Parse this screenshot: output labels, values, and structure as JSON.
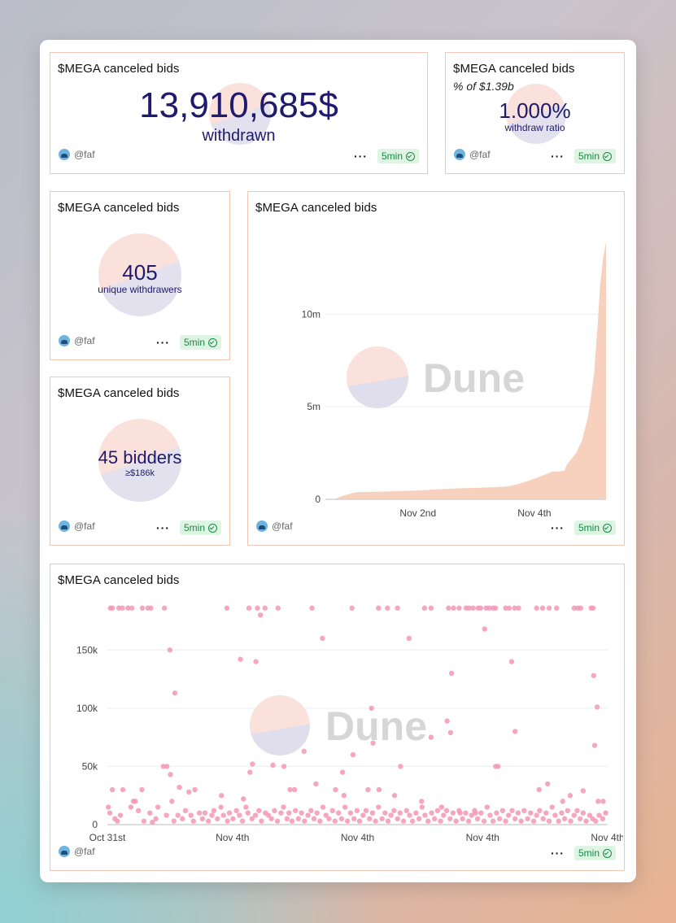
{
  "common": {
    "author": "@faf",
    "more_label": "···",
    "refresh_label": "5min",
    "watermark": "Dune"
  },
  "cards": {
    "withdrawn": {
      "title": "$MEGA canceled bids",
      "value": "13,910,685$",
      "label": "withdrawn"
    },
    "ratio": {
      "title": "$MEGA canceled bids",
      "subtitle": "% of $1.39b",
      "value": "1.000%",
      "label": "withdraw ratio"
    },
    "withdrawers": {
      "title": "$MEGA canceled bids",
      "value": "405",
      "label": "unique withdrawers"
    },
    "bidders": {
      "title": "$MEGA canceled bids",
      "value": "45 bidders",
      "label": "≥$186k"
    },
    "area_chart": {
      "title": "$MEGA canceled bids"
    },
    "scatter_chart": {
      "title": "$MEGA canceled bids"
    }
  },
  "chart_data": [
    {
      "type": "area",
      "title": "$MEGA canceled bids",
      "xlabel": "",
      "ylabel": "",
      "x_ticks": [
        "Nov 2nd",
        "Nov 4th"
      ],
      "y_ticks": [
        "0",
        "5m",
        "10m"
      ],
      "ylim": [
        0,
        14500000
      ],
      "color": "#f6c9b3",
      "x": [
        0,
        0.3,
        0.5,
        1.0,
        1.5,
        2.0,
        2.5,
        3.0,
        3.6,
        4.0,
        4.3,
        4.5,
        4.9,
        5.0,
        5.2,
        5.3,
        5.5,
        5.7,
        5.9,
        6.1,
        6.4,
        6.8,
        7.3,
        7.6,
        7.8,
        8.0,
        8.1,
        8.4,
        8.6,
        8.8,
        8.85,
        9.0,
        9.1,
        9.2,
        9.3,
        9.4
      ],
      "values": [
        0,
        0,
        150000,
        380000,
        400000,
        420000,
        450000,
        470000,
        520000,
        560000,
        580000,
        600000,
        610000,
        620000,
        620000,
        640000,
        650000,
        660000,
        680000,
        700000,
        800000,
        1000000,
        1300000,
        1500000,
        1500000,
        1550000,
        1900000,
        2500000,
        3200000,
        4500000,
        5000000,
        6800000,
        9000000,
        11500000,
        13000000,
        13910685
      ],
      "x_tick_positions": [
        3.1,
        7.0
      ],
      "grid": true
    },
    {
      "type": "scatter",
      "title": "$MEGA canceled bids",
      "xlabel": "",
      "ylabel": "",
      "x_ticks": [
        "Oct 31st",
        "Nov 4th",
        "Nov 4th",
        "Nov 4th",
        "Nov 4th"
      ],
      "y_ticks": [
        "0",
        "50k",
        "100k",
        "150k"
      ],
      "ylim": [
        0,
        190000
      ],
      "color": "#f598b5",
      "grid": true,
      "points": [
        [
          0.6,
          186000
        ],
        [
          1.0,
          186000
        ],
        [
          2.3,
          186000
        ],
        [
          3.0,
          186000
        ],
        [
          4.1,
          186000
        ],
        [
          4.9,
          186000
        ],
        [
          7.0,
          186000
        ],
        [
          8.1,
          186000
        ],
        [
          8.7,
          186000
        ],
        [
          11.4,
          186000
        ],
        [
          23.9,
          186000
        ],
        [
          28.3,
          186000
        ],
        [
          30.0,
          186000
        ],
        [
          31.5,
          186000
        ],
        [
          34.1,
          186000
        ],
        [
          40.9,
          186000
        ],
        [
          48.9,
          186000
        ],
        [
          54.2,
          186000
        ],
        [
          56.0,
          186000
        ],
        [
          58.0,
          186000
        ],
        [
          63.4,
          186000
        ],
        [
          64.7,
          186000
        ],
        [
          68.2,
          186000
        ],
        [
          69.2,
          186000
        ],
        [
          70.3,
          186000
        ],
        [
          71.7,
          186000
        ],
        [
          72.3,
          186000
        ],
        [
          73.1,
          186000
        ],
        [
          74.1,
          186000
        ],
        [
          74.6,
          186000
        ],
        [
          75.7,
          186000
        ],
        [
          76.3,
          186000
        ],
        [
          77.1,
          186000
        ],
        [
          77.6,
          186000
        ],
        [
          79.6,
          186000
        ],
        [
          80.3,
          186000
        ],
        [
          81.4,
          186000
        ],
        [
          82.2,
          186000
        ],
        [
          85.8,
          186000
        ],
        [
          87.0,
          186000
        ],
        [
          88.3,
          186000
        ],
        [
          89.8,
          186000
        ],
        [
          93.3,
          186000
        ],
        [
          94.0,
          186000
        ],
        [
          94.6,
          186000
        ],
        [
          96.7,
          186000
        ],
        [
          97.1,
          186000
        ],
        [
          30.6,
          180000
        ],
        [
          60.3,
          160000
        ],
        [
          75.4,
          168000
        ],
        [
          43.0,
          160000
        ],
        [
          12.5,
          150000
        ],
        [
          26.6,
          142000
        ],
        [
          29.7,
          140000
        ],
        [
          68.8,
          130000
        ],
        [
          80.8,
          140000
        ],
        [
          97.2,
          128000
        ],
        [
          13.5,
          113000
        ],
        [
          52.8,
          100000
        ],
        [
          97.9,
          101000
        ],
        [
          67.9,
          89000
        ],
        [
          68.6,
          79000
        ],
        [
          81.5,
          80000
        ],
        [
          53.1,
          70000
        ],
        [
          97.4,
          68000
        ],
        [
          64.7,
          75000
        ],
        [
          39.3,
          63000
        ],
        [
          49.1,
          60000
        ],
        [
          11.2,
          50000
        ],
        [
          11.9,
          50000
        ],
        [
          29.0,
          52000
        ],
        [
          33.1,
          51000
        ],
        [
          35.3,
          50000
        ],
        [
          58.6,
          50000
        ],
        [
          77.6,
          50000
        ],
        [
          78.1,
          50000
        ],
        [
          12.6,
          43000
        ],
        [
          47.0,
          45000
        ],
        [
          28.5,
          45000
        ],
        [
          1.0,
          30000
        ],
        [
          3.1,
          30000
        ],
        [
          6.9,
          30000
        ],
        [
          14.4,
          32000
        ],
        [
          16.3,
          28000
        ],
        [
          17.5,
          30000
        ],
        [
          22.8,
          25000
        ],
        [
          27.2,
          22000
        ],
        [
          36.5,
          30000
        ],
        [
          37.4,
          30000
        ],
        [
          41.7,
          35000
        ],
        [
          45.6,
          30000
        ],
        [
          47.3,
          25000
        ],
        [
          52.1,
          30000
        ],
        [
          54.3,
          30000
        ],
        [
          57.4,
          25000
        ],
        [
          62.8,
          20000
        ],
        [
          66.8,
          15000
        ],
        [
          70.5,
          10000
        ],
        [
          73.6,
          10000
        ],
        [
          86.3,
          30000
        ],
        [
          88.0,
          35000
        ],
        [
          92.5,
          25000
        ],
        [
          95.1,
          29000
        ],
        [
          98.1,
          20000
        ],
        [
          99.1,
          20000
        ],
        [
          91.0,
          20000
        ],
        [
          0.2,
          15000
        ],
        [
          0.5,
          10000
        ],
        [
          1.5,
          5000
        ],
        [
          2.0,
          3000
        ],
        [
          2.6,
          8000
        ],
        [
          4.7,
          15000
        ],
        [
          5.2,
          20000
        ],
        [
          5.6,
          20000
        ],
        [
          6.2,
          12000
        ],
        [
          7.3,
          3000
        ],
        [
          8.5,
          10000
        ],
        [
          9.0,
          2000
        ],
        [
          9.7,
          5000
        ],
        [
          10.1,
          15000
        ],
        [
          11.8,
          8000
        ],
        [
          12.9,
          20000
        ],
        [
          13.3,
          3000
        ],
        [
          14.1,
          8000
        ],
        [
          15.0,
          5000
        ],
        [
          15.6,
          12000
        ],
        [
          16.7,
          8000
        ],
        [
          17.2,
          3000
        ],
        [
          18.4,
          10000
        ],
        [
          19.0,
          5000
        ],
        [
          19.5,
          10000
        ],
        [
          20.2,
          3000
        ],
        [
          20.9,
          8000
        ],
        [
          21.3,
          12000
        ],
        [
          22.0,
          5000
        ],
        [
          22.7,
          15000
        ],
        [
          23.2,
          8000
        ],
        [
          24.0,
          3000
        ],
        [
          24.4,
          10000
        ],
        [
          25.1,
          5000
        ],
        [
          25.8,
          12000
        ],
        [
          26.4,
          8000
        ],
        [
          27.0,
          3000
        ],
        [
          27.7,
          15000
        ],
        [
          28.1,
          10000
        ],
        [
          28.9,
          5000
        ],
        [
          29.6,
          8000
        ],
        [
          30.3,
          12000
        ],
        [
          30.8,
          3000
        ],
        [
          31.6,
          10000
        ],
        [
          32.2,
          8000
        ],
        [
          32.8,
          5000
        ],
        [
          33.4,
          12000
        ],
        [
          34.0,
          3000
        ],
        [
          34.7,
          10000
        ],
        [
          35.2,
          15000
        ],
        [
          35.9,
          5000
        ],
        [
          36.3,
          10000
        ],
        [
          36.9,
          3000
        ],
        [
          37.6,
          12000
        ],
        [
          38.2,
          5000
        ],
        [
          38.8,
          10000
        ],
        [
          39.4,
          3000
        ],
        [
          40.1,
          8000
        ],
        [
          40.7,
          12000
        ],
        [
          41.3,
          5000
        ],
        [
          41.9,
          10000
        ],
        [
          42.5,
          3000
        ],
        [
          43.1,
          15000
        ],
        [
          43.7,
          8000
        ],
        [
          44.3,
          5000
        ],
        [
          45.0,
          12000
        ],
        [
          45.5,
          3000
        ],
        [
          46.2,
          10000
        ],
        [
          46.8,
          5000
        ],
        [
          47.5,
          15000
        ],
        [
          48.0,
          3000
        ],
        [
          48.6,
          10000
        ],
        [
          49.3,
          5000
        ],
        [
          49.9,
          12000
        ],
        [
          50.4,
          3000
        ],
        [
          51.1,
          8000
        ],
        [
          51.7,
          12000
        ],
        [
          52.4,
          5000
        ],
        [
          53.0,
          10000
        ],
        [
          53.6,
          3000
        ],
        [
          54.2,
          15000
        ],
        [
          54.9,
          5000
        ],
        [
          55.5,
          10000
        ],
        [
          56.1,
          3000
        ],
        [
          56.7,
          8000
        ],
        [
          57.3,
          12000
        ],
        [
          58.0,
          5000
        ],
        [
          58.5,
          10000
        ],
        [
          59.2,
          3000
        ],
        [
          59.8,
          12000
        ],
        [
          60.4,
          8000
        ],
        [
          61.0,
          3000
        ],
        [
          61.7,
          10000
        ],
        [
          62.3,
          5000
        ],
        [
          62.9,
          15000
        ],
        [
          63.5,
          8000
        ],
        [
          64.1,
          3000
        ],
        [
          64.8,
          10000
        ],
        [
          65.4,
          5000
        ],
        [
          66.0,
          12000
        ],
        [
          66.6,
          3000
        ],
        [
          67.2,
          8000
        ],
        [
          67.8,
          12000
        ],
        [
          68.5,
          5000
        ],
        [
          69.1,
          10000
        ],
        [
          69.7,
          3000
        ],
        [
          70.3,
          12000
        ],
        [
          71.0,
          5000
        ],
        [
          71.6,
          10000
        ],
        [
          72.2,
          3000
        ],
        [
          72.8,
          8000
        ],
        [
          73.4,
          12000
        ],
        [
          74.0,
          5000
        ],
        [
          74.7,
          10000
        ],
        [
          75.3,
          3000
        ],
        [
          75.9,
          15000
        ],
        [
          76.5,
          8000
        ],
        [
          77.1,
          3000
        ],
        [
          77.8,
          10000
        ],
        [
          78.4,
          5000
        ],
        [
          79.0,
          12000
        ],
        [
          79.6,
          3000
        ],
        [
          80.2,
          8000
        ],
        [
          80.9,
          12000
        ],
        [
          81.5,
          5000
        ],
        [
          82.1,
          10000
        ],
        [
          82.7,
          3000
        ],
        [
          83.3,
          12000
        ],
        [
          84.0,
          5000
        ],
        [
          84.6,
          10000
        ],
        [
          85.2,
          3000
        ],
        [
          85.8,
          8000
        ],
        [
          86.4,
          12000
        ],
        [
          87.1,
          5000
        ],
        [
          87.7,
          10000
        ],
        [
          88.3,
          3000
        ],
        [
          88.9,
          15000
        ],
        [
          89.5,
          8000
        ],
        [
          90.2,
          3000
        ],
        [
          90.8,
          10000
        ],
        [
          91.4,
          5000
        ],
        [
          92.0,
          12000
        ],
        [
          92.6,
          3000
        ],
        [
          93.3,
          8000
        ],
        [
          93.9,
          12000
        ],
        [
          94.5,
          5000
        ],
        [
          95.1,
          10000
        ],
        [
          95.7,
          3000
        ],
        [
          96.4,
          8000
        ],
        [
          97.0,
          5000
        ],
        [
          97.6,
          3000
        ],
        [
          98.3,
          8000
        ],
        [
          99.0,
          5000
        ],
        [
          99.6,
          10000
        ]
      ],
      "x_tick_positions": [
        0,
        25,
        50,
        75,
        100
      ],
      "x_note": "points: [relative time position 0–100 across axis, bid value]"
    }
  ]
}
